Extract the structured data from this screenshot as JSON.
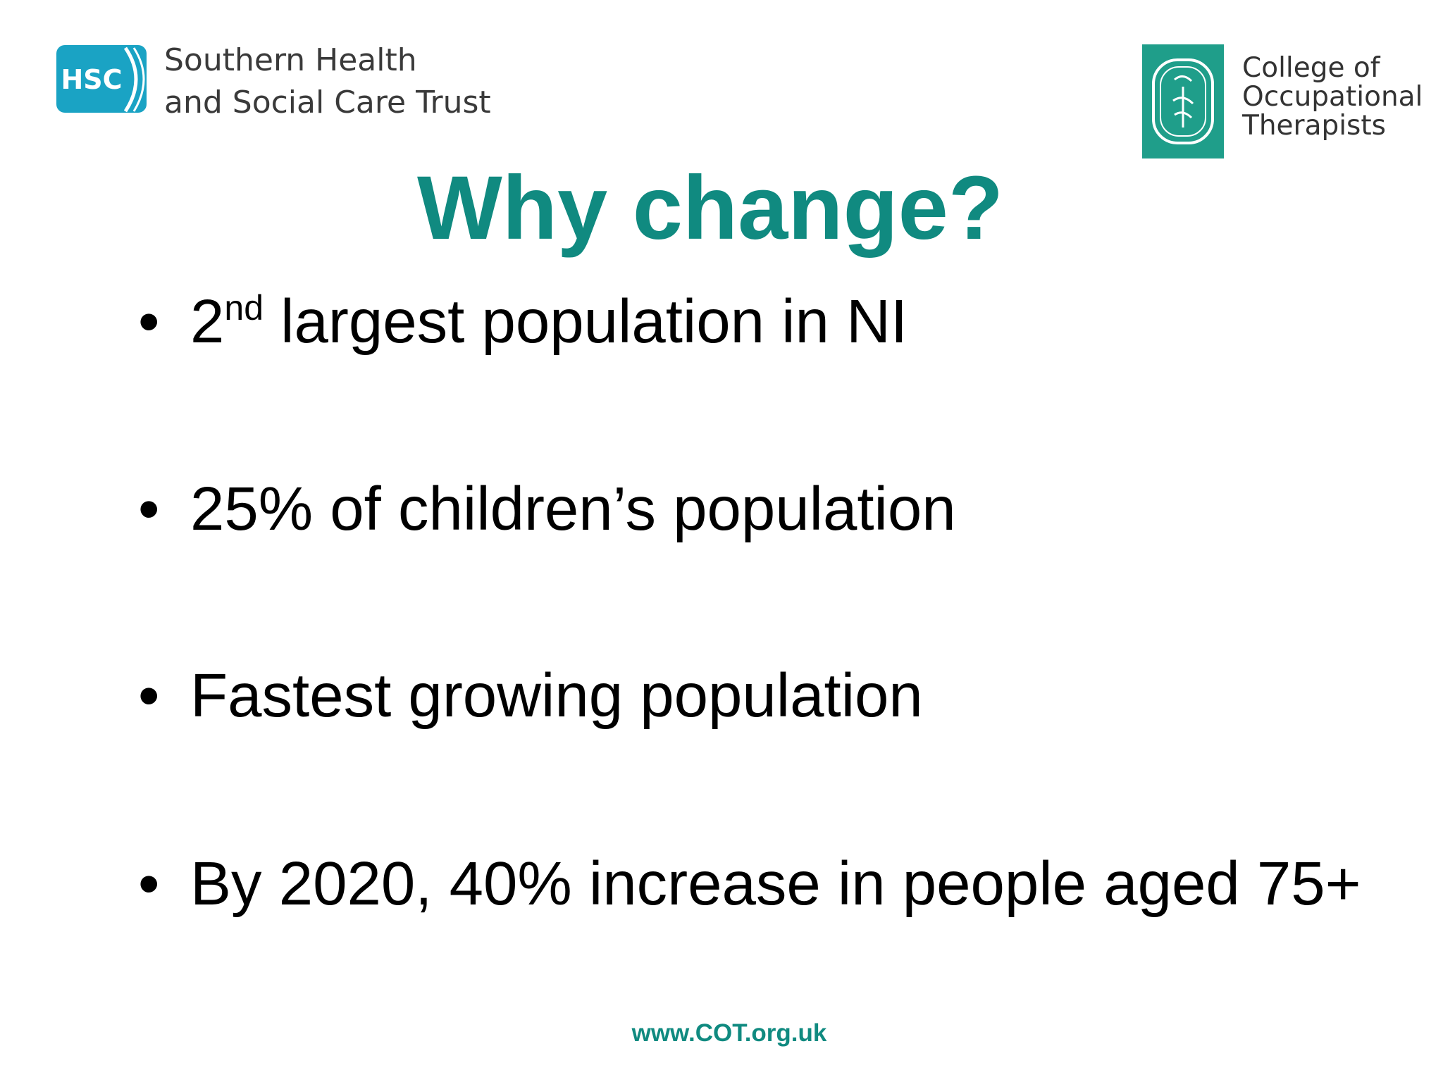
{
  "logos": {
    "hsc": {
      "badge": "HSC",
      "lines": [
        "Southern Health",
        "and Social Care Trust"
      ]
    },
    "cot": {
      "lines": [
        "College of",
        "Occupational",
        "Therapists"
      ]
    }
  },
  "title": "Why change?",
  "bullets": [
    {
      "parts": [
        "2",
        "nd",
        " largest population in NI"
      ]
    },
    {
      "parts": [
        "25% of children’s population"
      ]
    },
    {
      "parts": [
        "Fastest growing population"
      ]
    },
    {
      "parts": [
        "By 2020, 40% increase in people aged 75+"
      ]
    }
  ],
  "footer": "www.COT.org.uk"
}
